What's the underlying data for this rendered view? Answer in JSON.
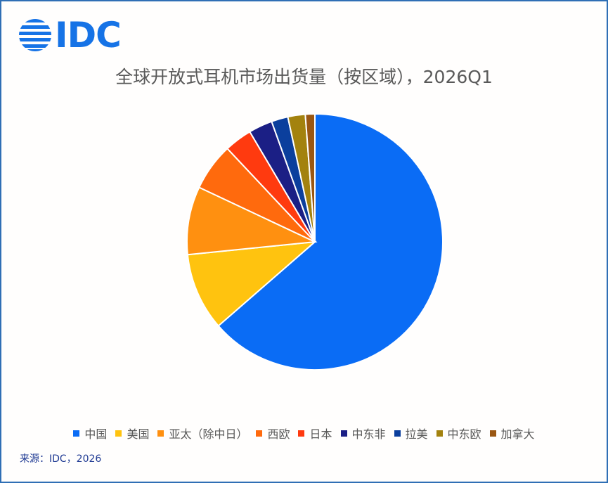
{
  "logo": {
    "text": "IDC",
    "color": "#1673e6"
  },
  "chart_data": {
    "type": "pie",
    "title": "全球开放式耳机市场出货量（按区域），2026Q1",
    "categories": [
      "中国",
      "美国",
      "亚太（除中日）",
      "西欧",
      "日本",
      "中东非",
      "拉美",
      "中东欧",
      "加拿大"
    ],
    "values": [
      63.6,
      9.8,
      8.6,
      6.0,
      3.5,
      3.0,
      2.1,
      2.2,
      1.2
    ],
    "colors": [
      "#0a6cf5",
      "#ffc30f",
      "#ff9010",
      "#ff6a0d",
      "#ff3a0f",
      "#1b1f85",
      "#0b3f9d",
      "#a3820e",
      "#9a5712"
    ],
    "legend_position": "bottom",
    "start_angle_deg": 0,
    "direction": "clockwise"
  },
  "source": "来源：IDC，2026"
}
